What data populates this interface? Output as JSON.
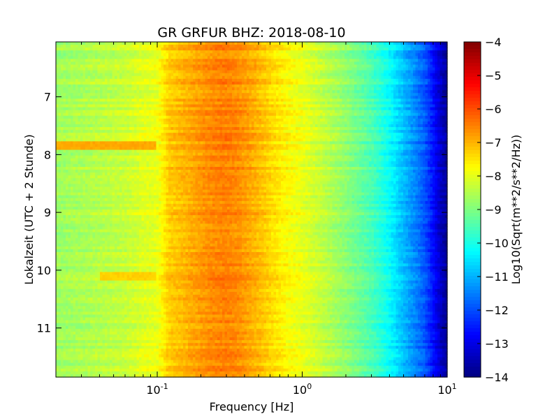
{
  "chart_data": {
    "type": "heatmap",
    "title": "GR GRFUR BHZ: 2018-08-10",
    "xlabel": "Frequency [Hz]",
    "ylabel": "Lokalzeit (UTC + 2 Stunde)",
    "x_scale": "log",
    "xlim": [
      0.02,
      10
    ],
    "ylim": [
      11.85,
      6.05
    ],
    "y_inverted": true,
    "x_ticks": [
      {
        "value": 0.1,
        "base": "10",
        "exp": "-1"
      },
      {
        "value": 1,
        "base": "10",
        "exp": "0"
      },
      {
        "value": 10,
        "base": "10",
        "exp": "1"
      }
    ],
    "y_ticks": [
      7,
      8,
      9,
      10,
      11
    ],
    "y_tick_labels": [
      "7",
      "8",
      "9",
      "10",
      "11"
    ],
    "colorbar": {
      "label": "Log10(Sqrt(m**2/s**2/Hz))",
      "range": [
        -14,
        -4
      ],
      "ticks": [
        -4,
        -5,
        -6,
        -7,
        -8,
        -9,
        -10,
        -11,
        -12,
        -13,
        -14
      ],
      "tick_labels": [
        "−4",
        "−5",
        "−6",
        "−7",
        "−8",
        "−9",
        "−10",
        "−11",
        "−12",
        "−13",
        "−14"
      ],
      "colormap": "jet"
    },
    "spectrum_profile": {
      "frequency_hz": [
        0.02,
        0.04,
        0.06,
        0.08,
        0.1,
        0.12,
        0.15,
        0.2,
        0.25,
        0.3,
        0.35,
        0.4,
        0.5,
        0.6,
        0.8,
        1.0,
        1.5,
        2.0,
        3.0,
        4.0,
        5.0,
        6.0,
        7.0,
        8.0,
        9.0,
        10.0
      ],
      "log10_amplitude": [
        -8.7,
        -8.45,
        -8.3,
        -8.05,
        -7.95,
        -7.25,
        -7.05,
        -6.75,
        -6.55,
        -6.5,
        -6.6,
        -6.75,
        -7.05,
        -7.35,
        -7.75,
        -7.95,
        -8.45,
        -8.85,
        -9.5,
        -10.2,
        -10.9,
        -11.4,
        -11.9,
        -12.6,
        -13.3,
        -13.8
      ]
    },
    "events": [
      {
        "time": 7.85,
        "freq_range": [
          0.02,
          0.1
        ],
        "log10_amplitude": -6.9
      },
      {
        "time": 10.1,
        "freq_range": [
          0.04,
          0.1
        ],
        "log10_amplitude": -7.3
      }
    ],
    "grid": false
  }
}
